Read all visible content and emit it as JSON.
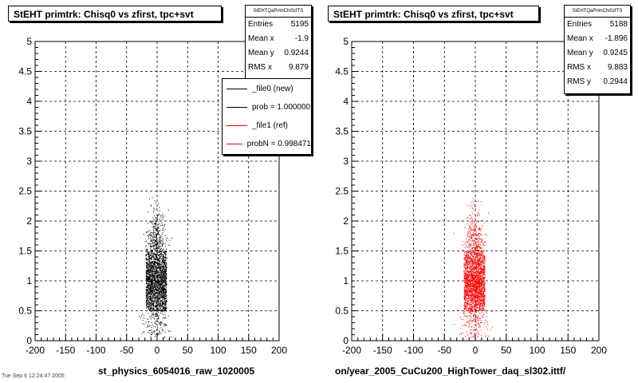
{
  "chart_data": [
    {
      "type": "scatter",
      "title": "StEHT primtrk: Chisq0 vs zfirst, tpc+svt",
      "xlabel": "st_physics_6054016_raw_1020005",
      "ylabel": "",
      "xlim": [
        -200,
        200
      ],
      "ylim": [
        0,
        5
      ],
      "x_ticks": [
        "-200",
        "-150",
        "-100",
        "-50",
        "0",
        "50",
        "100",
        "150",
        "200"
      ],
      "y_ticks": [
        "0",
        "0.5",
        "1",
        "1.5",
        "2",
        "2.5",
        "3",
        "3.5",
        "4",
        "4.5",
        "5"
      ],
      "grid": true,
      "marker_color": "#000000",
      "stats": {
        "header": "StEHTQaPrimChi0zfTS",
        "rows": [
          {
            "label": "Entries",
            "value": "5195"
          },
          {
            "label": "Mean x",
            "value": "-1.9"
          },
          {
            "label": "Mean y",
            "value": "0.9244"
          },
          {
            "label": "RMS x",
            "value": "9.879"
          }
        ]
      },
      "legend": {
        "placement": "top-right",
        "entries": [
          {
            "label": "_file0 (new)",
            "color": "#000000"
          },
          {
            "label": "prob = 1.000000",
            "color": "#000000"
          },
          {
            "label": "_file1 (ref)",
            "color": "#ff0000"
          },
          {
            "label": "probN = 0.998471",
            "color": "#ff0000"
          }
        ]
      },
      "distribution": {
        "x_center": -1.9,
        "x_core_halfwidth": 17,
        "y_core": [
          0.5,
          1.5
        ],
        "y_max": 2.4
      }
    },
    {
      "type": "scatter",
      "title": "StEHT primtrk: Chisq0 vs zfirst, tpc+svt",
      "xlabel": "on/year_2005_CuCu200_HighTower_daq_sl302.ittf/",
      "ylabel": "",
      "xlim": [
        -200,
        200
      ],
      "ylim": [
        0,
        5
      ],
      "x_ticks": [
        "-200",
        "-150",
        "-100",
        "-50",
        "0",
        "50",
        "100",
        "150",
        "200"
      ],
      "y_ticks": [
        "0",
        "0.5",
        "1",
        "1.5",
        "2",
        "2.5",
        "3",
        "3.5",
        "4",
        "4.5",
        "5"
      ],
      "grid": true,
      "marker_color": "#ff0000",
      "stats": {
        "header": "StEHTQaPrimChi0zfTS",
        "rows": [
          {
            "label": "Entries",
            "value": "5188"
          },
          {
            "label": "Mean x",
            "value": "-1.896"
          },
          {
            "label": "Mean y",
            "value": "0.9245"
          },
          {
            "label": "RMS x",
            "value": "9.883"
          },
          {
            "label": "RMS y",
            "value": "0.2944"
          }
        ]
      },
      "distribution": {
        "x_center": -1.896,
        "x_core_halfwidth": 17,
        "y_core": [
          0.5,
          1.5
        ],
        "y_max": 2.4
      }
    }
  ],
  "footer_text": "Tue Sep 6 12:24:47 2005"
}
